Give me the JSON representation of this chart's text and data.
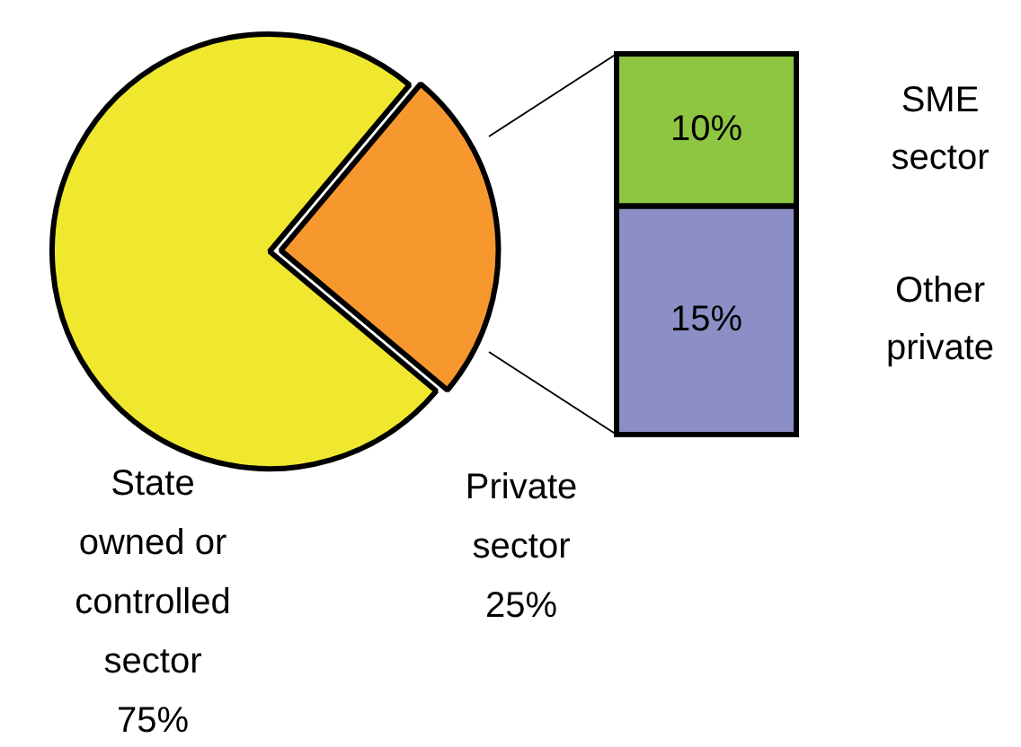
{
  "chart_data": [
    {
      "type": "pie",
      "categories": [
        "State owned or controlled sector",
        "Private sector"
      ],
      "values": [
        75,
        25
      ],
      "colors": [
        "#f0e82e",
        "#f7982f"
      ],
      "value_labels": [
        "75%",
        "25%"
      ]
    },
    {
      "type": "bar",
      "stacked": true,
      "categories": [
        null
      ],
      "legend": false,
      "series": [
        {
          "name": "Other private",
          "color": "#8b8fc6",
          "values": [
            15
          ],
          "value_labels": [
            "15%"
          ]
        },
        {
          "name": "SME sector",
          "color": "#8ec641",
          "values": [
            10
          ],
          "value_labels": [
            "10%"
          ]
        }
      ]
    }
  ]
}
